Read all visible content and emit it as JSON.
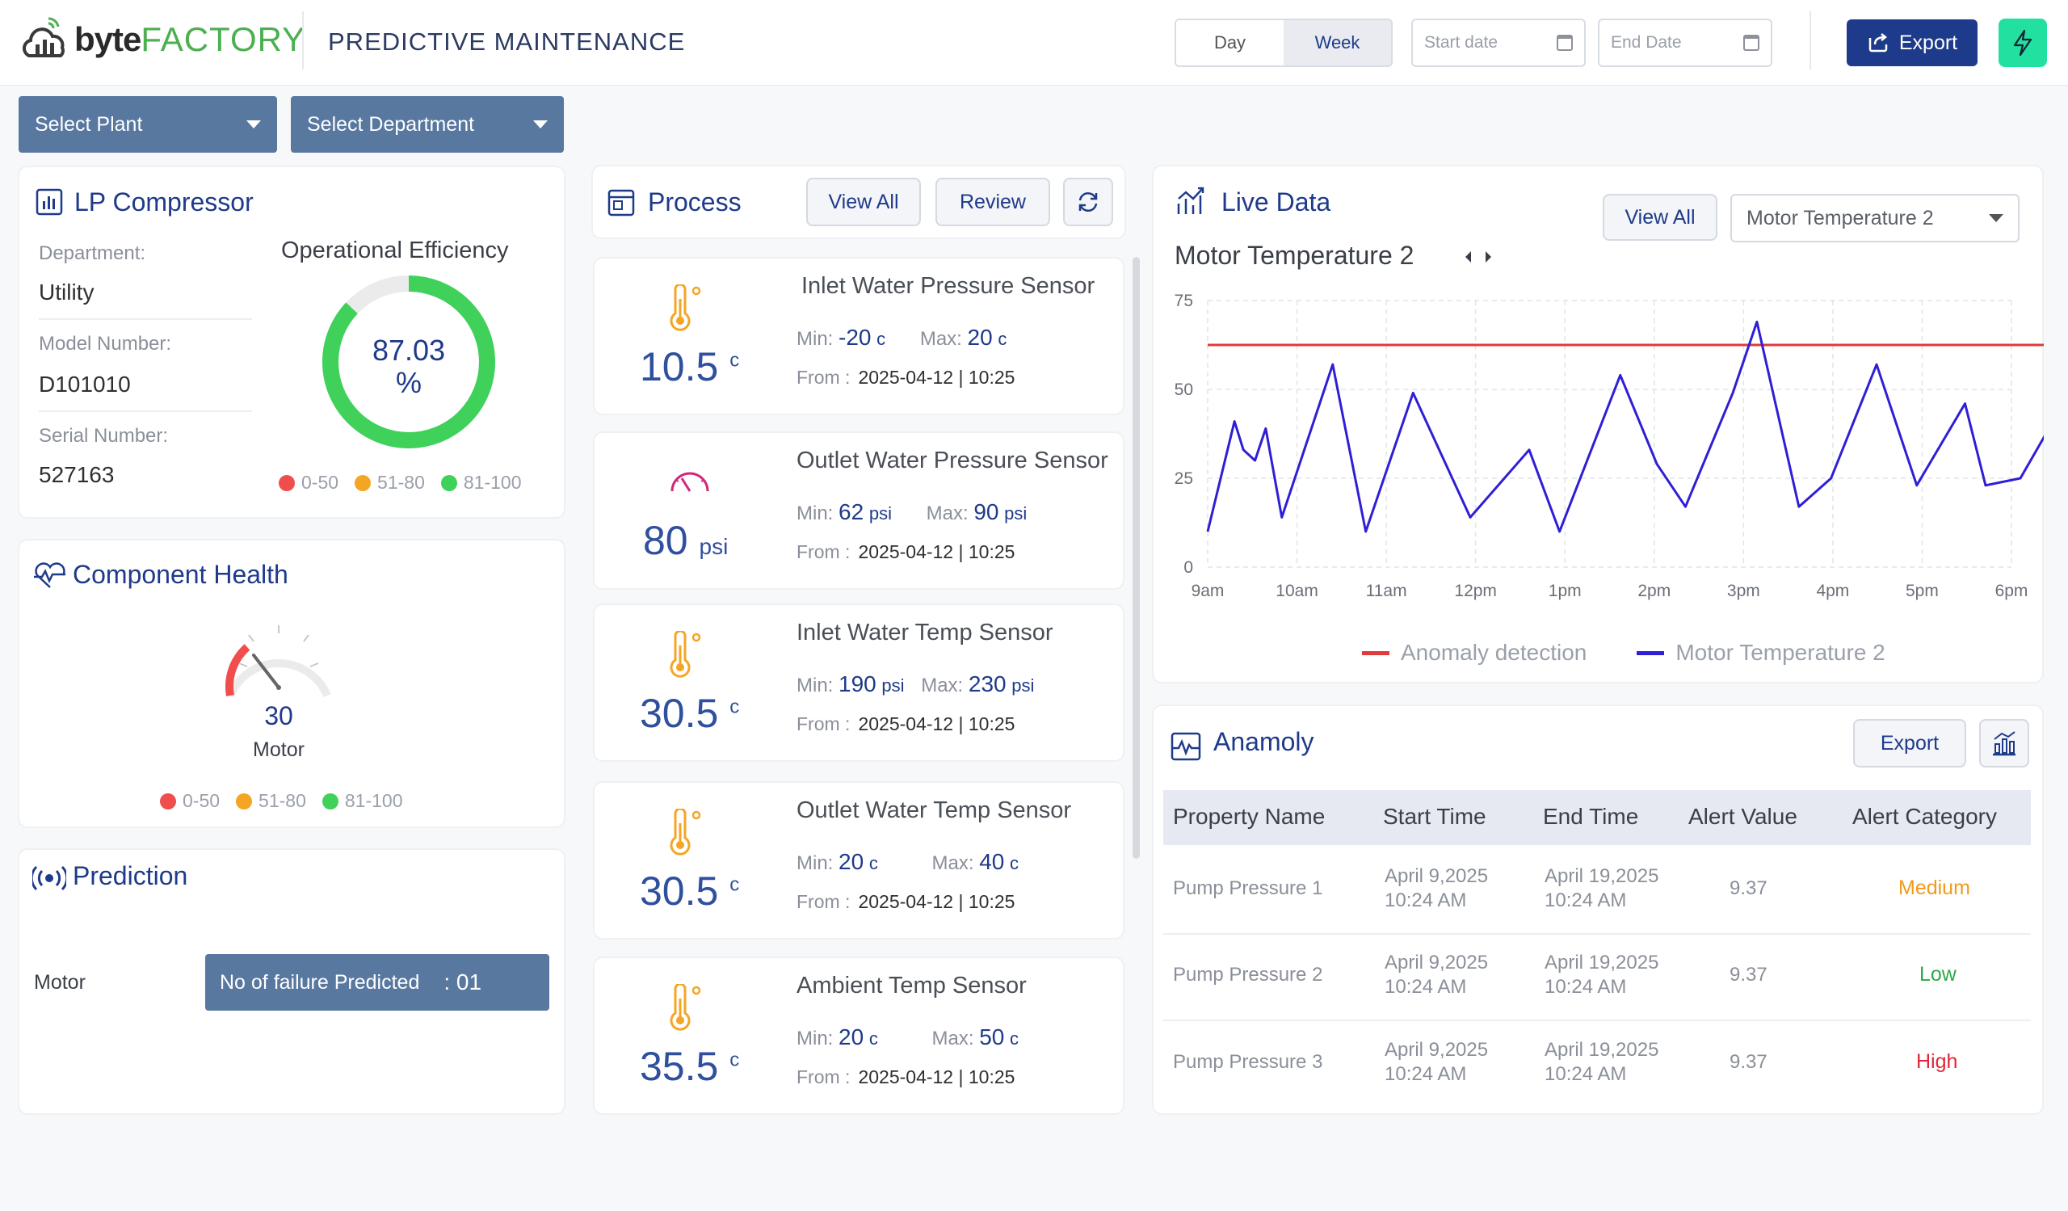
{
  "header": {
    "brand_bold": "byte",
    "brand_thin": "FACTORY",
    "title": "PREDICTIVE MAINTENANCE",
    "range_day": "Day",
    "range_week": "Week",
    "start_date_placeholder": "Start date",
    "end_date_placeholder": "End Date",
    "export_label": "Export"
  },
  "filters": {
    "plant": "Select Plant",
    "department": "Select Department"
  },
  "asset": {
    "title": "LP Compressor",
    "department_label": "Department:",
    "department_value": "Utility",
    "model_label": "Model Number:",
    "model_value": "D101010",
    "serial_label": "Serial Number:",
    "serial_value": "527163",
    "efficiency_title": "Operational Efficiency",
    "efficiency_value": "87.03",
    "efficiency_unit": "%",
    "efficiency_fraction": 0.8703
  },
  "legend": {
    "low": "0-50",
    "mid": "51-80",
    "high": "81-100",
    "colors": {
      "low": "#f04d4d",
      "mid": "#f5a524",
      "high": "#3fd15a"
    }
  },
  "component_health": {
    "title": "Component Health",
    "value": "30",
    "name": "Motor"
  },
  "prediction": {
    "title": "Prediction",
    "component": "Motor",
    "label": "No of failure Predicted",
    "count": ": 01"
  },
  "process": {
    "title": "Process",
    "view_all": "View All",
    "review": "Review",
    "min_label": "Min:",
    "max_label": "Max:",
    "from_label": "From :",
    "sensors": [
      {
        "name": "Inlet Water Pressure Sensor",
        "value": "10.5",
        "unit": "c",
        "min": "-20",
        "min_unit": "c",
        "max": "20",
        "max_unit": "c",
        "from": "2025-04-12 | 10:25",
        "icon": "thermometer-icon"
      },
      {
        "name": "Outlet Water Pressure Sensor",
        "value": "80",
        "unit": "psi",
        "min": "62",
        "min_unit": "psi",
        "max": "90",
        "max_unit": "psi",
        "from": "2025-04-12 | 10:25",
        "icon": "gauge-icon"
      },
      {
        "name": "Inlet Water Temp Sensor",
        "value": "30.5",
        "unit": "c",
        "min": "190",
        "min_unit": "psi",
        "max": "230",
        "max_unit": "psi",
        "from": "2025-04-12 | 10:25",
        "icon": "thermometer-icon"
      },
      {
        "name": "Outlet Water Temp Sensor",
        "value": "30.5",
        "unit": "c",
        "min": "20",
        "min_unit": "c",
        "max": "40",
        "max_unit": "c",
        "from": "2025-04-12 | 10:25",
        "icon": "thermometer-icon"
      },
      {
        "name": "Ambient Temp Sensor",
        "value": "35.5",
        "unit": "c",
        "min": "20",
        "min_unit": "c",
        "max": "50",
        "max_unit": "c",
        "from": "2025-04-12 | 10:25",
        "icon": "thermometer-icon"
      }
    ]
  },
  "live": {
    "title": "Live Data",
    "view_all": "View All",
    "selected": "Motor Temperature 2",
    "chart_title": "Motor Temperature 2"
  },
  "chart_data": {
    "type": "line",
    "title": "Motor Temperature 2",
    "x_ticks": [
      "9am",
      "10am",
      "11am",
      "12pm",
      "1pm",
      "2pm",
      "3pm",
      "4pm",
      "5pm",
      "6pm"
    ],
    "y_ticks": [
      "0",
      "25",
      "50",
      "75"
    ],
    "ylim": [
      0,
      75
    ],
    "grid": true,
    "legend_position": "bottom",
    "series": [
      {
        "name": "Motor Temperature 2",
        "color": "#2e1fd6",
        "x": [
          0,
          0.3,
          0.4,
          0.53,
          0.65,
          0.83,
          1.4,
          1.77,
          2.3,
          2.94,
          3.6,
          3.94,
          4.62,
          5.03,
          5.35,
          5.88,
          6.15,
          6.62,
          6.98,
          7.49,
          7.94,
          8.48,
          8.71,
          9.1,
          9.58,
          10.12
        ],
        "values": [
          10,
          41,
          33,
          30,
          39,
          14,
          57,
          10,
          49,
          14,
          33,
          10,
          54,
          29,
          17,
          49,
          69,
          17,
          25,
          57,
          23,
          46,
          23,
          25,
          46,
          10
        ]
      },
      {
        "name": "Anomaly detection",
        "color": "#e03a3a",
        "x": [
          0,
          10.12
        ],
        "values": [
          62.5,
          62.5
        ]
      }
    ]
  },
  "anomaly": {
    "title": "Anamoly",
    "export_label": "Export",
    "columns": [
      "Property Name",
      "Start Time",
      "End Time",
      "Alert Value",
      "Alert Category"
    ],
    "rows": [
      {
        "name": "Pump Pressure 1",
        "start_date": "April 9,2025",
        "start_time": "10:24 AM",
        "end_date": "April 19,2025",
        "end_time": "10:24 AM",
        "value": "9.37",
        "category": "Medium",
        "color": "#f29a1a"
      },
      {
        "name": "Pump Pressure 2",
        "start_date": "April 9,2025",
        "start_time": "10:24 AM",
        "end_date": "April 19,2025",
        "end_time": "10:24 AM",
        "value": "9.37",
        "category": "Low",
        "color": "#2ea84a"
      },
      {
        "name": "Pump Pressure 3",
        "start_date": "April 9,2025",
        "start_time": "10:24 AM",
        "end_date": "April 19,2025",
        "end_time": "10:24 AM",
        "value": "9.37",
        "category": "High",
        "color": "#e0263a"
      }
    ]
  }
}
